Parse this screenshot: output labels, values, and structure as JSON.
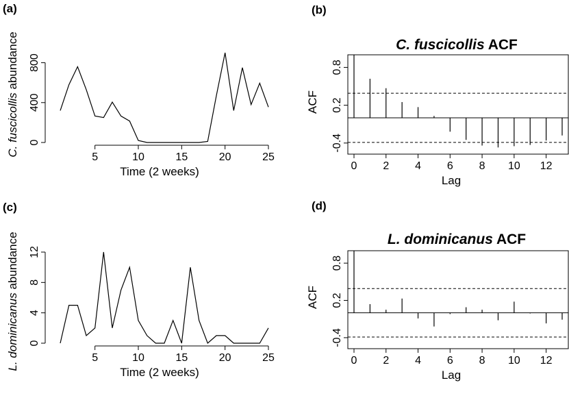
{
  "panels": {
    "a": {
      "tag": "(a)",
      "ylabel_species": "C. fuscicollis",
      "ylabel_rest": " abundance"
    },
    "b": {
      "tag": "(b)",
      "title_species": "C. fuscicollis",
      "title_rest": " ACF"
    },
    "c": {
      "tag": "(c)",
      "ylabel_species": "L. dominicanus",
      "ylabel_rest": " abundance"
    },
    "d": {
      "tag": "(d)",
      "title_species": "L. dominicanus",
      "title_rest": " ACF"
    }
  },
  "chart_data": [
    {
      "id": "a",
      "type": "line",
      "title": "",
      "xlabel": "Time (2 weeks)",
      "ylabel": "C. fuscicollis abundance",
      "xlim": [
        1,
        25
      ],
      "ylim": [
        0,
        900
      ],
      "xticks": [
        5,
        10,
        15,
        20,
        25
      ],
      "yticks": [
        0,
        400,
        800
      ],
      "x": [
        1,
        2,
        3,
        4,
        5,
        6,
        7,
        8,
        9,
        10,
        11,
        12,
        13,
        14,
        15,
        16,
        17,
        18,
        19,
        20,
        21,
        22,
        23,
        24,
        25
      ],
      "series": [
        {
          "values": [
            320,
            580,
            760,
            530,
            265,
            250,
            405,
            265,
            215,
            20,
            0,
            0,
            0,
            0,
            0,
            0,
            0,
            10,
            470,
            900,
            320,
            750,
            380,
            595,
            355
          ]
        }
      ]
    },
    {
      "id": "b",
      "type": "bar",
      "title": "C. fuscicollis ACF",
      "xlabel": "Lag",
      "ylabel": "ACF",
      "xlim": [
        0,
        13
      ],
      "ylim": [
        -0.5,
        1.0
      ],
      "xticks": [
        0,
        2,
        4,
        6,
        8,
        10,
        12
      ],
      "yticks": [
        -0.4,
        0.2,
        0.8
      ],
      "ytick_labels": [
        "-0.4",
        "0.2",
        "0.8"
      ],
      "lags": [
        0,
        1,
        2,
        3,
        4,
        5,
        6,
        7,
        8,
        9,
        10,
        11,
        12,
        13
      ],
      "values": [
        1.0,
        0.62,
        0.47,
        0.25,
        0.17,
        0.03,
        -0.22,
        -0.35,
        -0.44,
        -0.47,
        -0.45,
        -0.43,
        -0.36,
        -0.28
      ],
      "ci": 0.39
    },
    {
      "id": "c",
      "type": "line",
      "title": "",
      "xlabel": "Time (2 weeks)",
      "ylabel": "L. dominicanus abundance",
      "xlim": [
        1,
        25
      ],
      "ylim": [
        0,
        12
      ],
      "xticks": [
        5,
        10,
        15,
        20,
        25
      ],
      "yticks": [
        0,
        4,
        8,
        12
      ],
      "x": [
        1,
        2,
        3,
        4,
        5,
        6,
        7,
        8,
        9,
        10,
        11,
        12,
        13,
        14,
        15,
        16,
        17,
        18,
        19,
        20,
        21,
        22,
        23,
        24,
        25
      ],
      "series": [
        {
          "values": [
            0,
            5,
            5,
            1,
            2,
            12,
            2,
            7,
            10,
            3,
            1,
            0,
            0,
            3,
            0,
            10,
            3,
            0,
            1,
            1,
            0,
            0,
            0,
            0,
            2
          ]
        }
      ]
    },
    {
      "id": "d",
      "type": "bar",
      "title": "L. dominicanus ACF",
      "xlabel": "Lag",
      "ylabel": "ACF",
      "xlim": [
        0,
        13
      ],
      "ylim": [
        -0.5,
        1.0
      ],
      "xticks": [
        0,
        2,
        4,
        6,
        8,
        10,
        12
      ],
      "yticks": [
        -0.4,
        0.2,
        0.8
      ],
      "ytick_labels": [
        "-0.4",
        "0.2",
        "0.8"
      ],
      "lags": [
        0,
        1,
        2,
        3,
        4,
        5,
        6,
        7,
        8,
        9,
        10,
        11,
        12,
        13
      ],
      "values": [
        1.0,
        0.14,
        0.05,
        0.23,
        -0.09,
        -0.22,
        -0.02,
        0.09,
        0.05,
        -0.12,
        0.18,
        -0.01,
        -0.17,
        -0.11
      ],
      "ci": 0.39
    }
  ]
}
